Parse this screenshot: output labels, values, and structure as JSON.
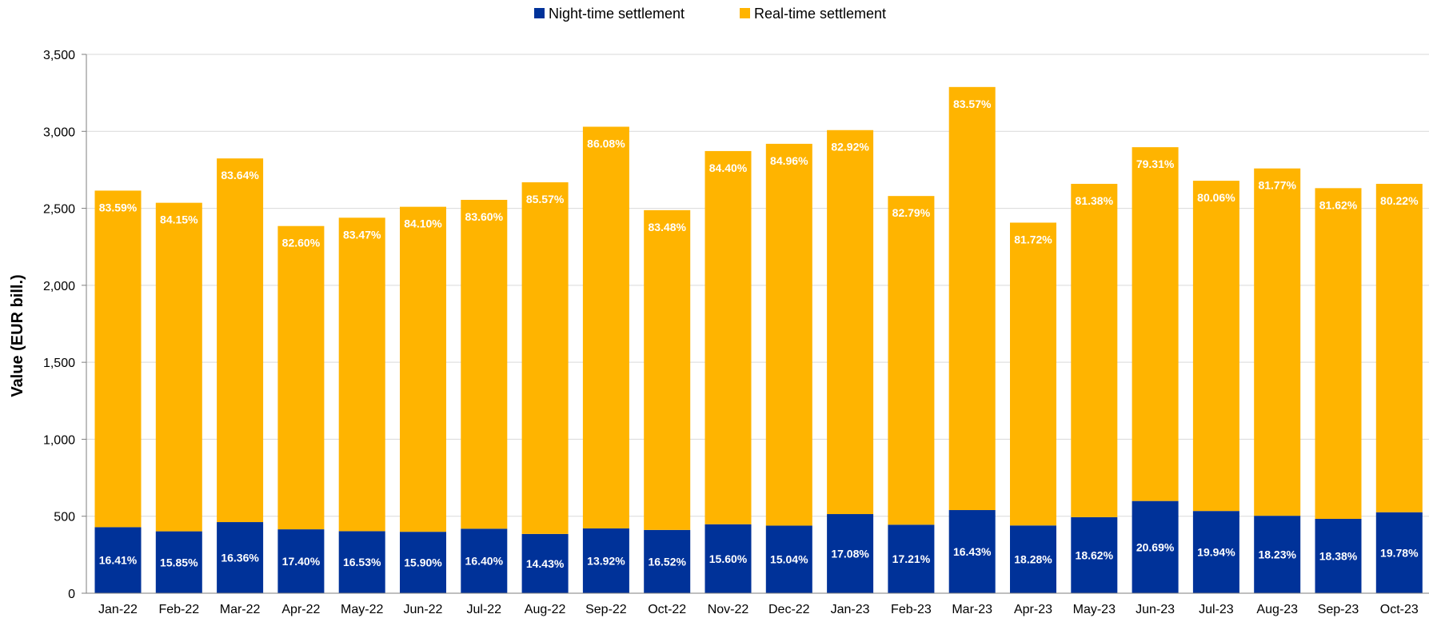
{
  "chart_data": {
    "type": "bar",
    "stacked": true,
    "ylabel": "Value (EUR bill.)",
    "ylim": [
      0,
      3500
    ],
    "yticks": [
      0,
      500,
      1000,
      1500,
      2000,
      2500,
      3000,
      3500
    ],
    "ytick_labels": [
      "0",
      "500",
      "1,000",
      "1,500",
      "2,000",
      "2,500",
      "3,000",
      "3,500"
    ],
    "grid": true,
    "legend_position": "top-center",
    "categories": [
      "Jan-22",
      "Feb-22",
      "Mar-22",
      "Apr-22",
      "May-22",
      "Jun-22",
      "Jul-22",
      "Aug-22",
      "Sep-22",
      "Oct-22",
      "Nov-22",
      "Dec-22",
      "Jan-23",
      "Feb-23",
      "Mar-23",
      "Apr-23",
      "May-23",
      "Jun-23",
      "Jul-23",
      "Aug-23",
      "Sep-23",
      "Oct-23"
    ],
    "series": [
      {
        "name": "Night-time settlement",
        "color": "#003299",
        "values": [
          429,
          402,
          462,
          415,
          403,
          399,
          419,
          385,
          421,
          411,
          448,
          439,
          514,
          445,
          540,
          440,
          494,
          599,
          534,
          503,
          483,
          526
        ],
        "labels": [
          "16.41%",
          "15.85%",
          "16.36%",
          "17.40%",
          "16.53%",
          "15.90%",
          "16.40%",
          "14.43%",
          "13.92%",
          "16.52%",
          "15.60%",
          "15.04%",
          "17.08%",
          "17.21%",
          "16.43%",
          "18.28%",
          "18.62%",
          "20.69%",
          "19.94%",
          "18.23%",
          "18.38%",
          "19.78%"
        ]
      },
      {
        "name": "Real-time settlement",
        "color": "#FFB400",
        "values": [
          2186,
          2134,
          2362,
          1970,
          2036,
          2111,
          2136,
          2284,
          2609,
          2077,
          2424,
          2480,
          2494,
          2135,
          2748,
          1967,
          2165,
          2298,
          2145,
          2256,
          2148,
          2133
        ],
        "labels": [
          "83.59%",
          "84.15%",
          "83.64%",
          "82.60%",
          "83.47%",
          "84.10%",
          "83.60%",
          "85.57%",
          "86.08%",
          "83.48%",
          "84.40%",
          "84.96%",
          "82.92%",
          "82.79%",
          "83.57%",
          "81.72%",
          "81.38%",
          "79.31%",
          "80.06%",
          "81.77%",
          "81.62%",
          "80.22%"
        ]
      }
    ]
  }
}
